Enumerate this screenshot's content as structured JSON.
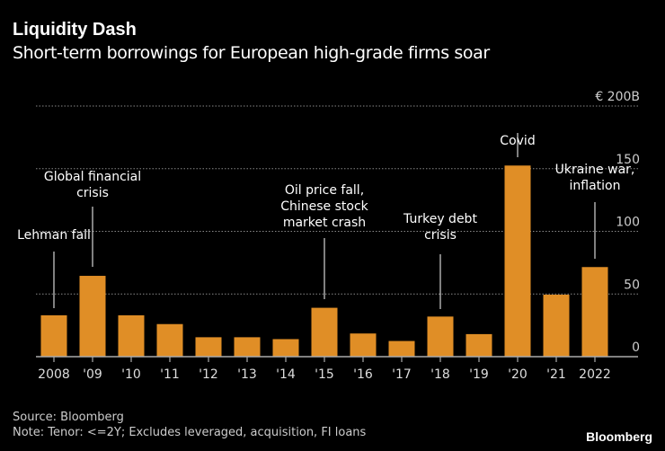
{
  "header": {
    "title": "Liquidity Dash",
    "subtitle": "Short-term borrowings for European high-grade firms soar"
  },
  "footer": {
    "source": "Source: Bloomberg",
    "note": "Note: Tenor: <=2Y; Excludes leveraged, acquisition, FI loans",
    "logo": "Bloomberg"
  },
  "chart_data": {
    "type": "bar",
    "title": "Liquidity Dash",
    "subtitle": "Short-term borrowings for European high-grade firms soar",
    "categories": [
      "2008",
      "'09",
      "'10",
      "'11",
      "'12",
      "'13",
      "'14",
      "'15",
      "'16",
      "'17",
      "'18",
      "'19",
      "'20",
      "'21",
      "2022"
    ],
    "values": [
      33,
      64.5,
      33,
      26,
      15.5,
      15.5,
      14,
      39,
      18.5,
      12.5,
      32,
      18,
      152.5,
      49.5,
      71.5
    ],
    "ylim": [
      0,
      200
    ],
    "yticks": [
      0,
      50,
      100,
      150,
      200
    ],
    "ytick_labels": [
      "0",
      "50",
      "100",
      "150",
      "€ 200B"
    ],
    "y_axis_side": "right",
    "grid": true,
    "bar_color": "#e08e26",
    "annotations": [
      {
        "category": "2008",
        "lines": [
          "Lehman fall"
        ]
      },
      {
        "category": "'09",
        "lines": [
          "Global financial",
          "crisis"
        ]
      },
      {
        "category": "'15",
        "lines": [
          "Oil price fall,",
          "Chinese stock",
          "market crash"
        ]
      },
      {
        "category": "'18",
        "lines": [
          "Turkey debt",
          "crisis"
        ]
      },
      {
        "category": "'20",
        "lines": [
          "Covid"
        ]
      },
      {
        "category": "2022",
        "lines": [
          "Ukraine war,",
          "inflation"
        ]
      }
    ]
  }
}
